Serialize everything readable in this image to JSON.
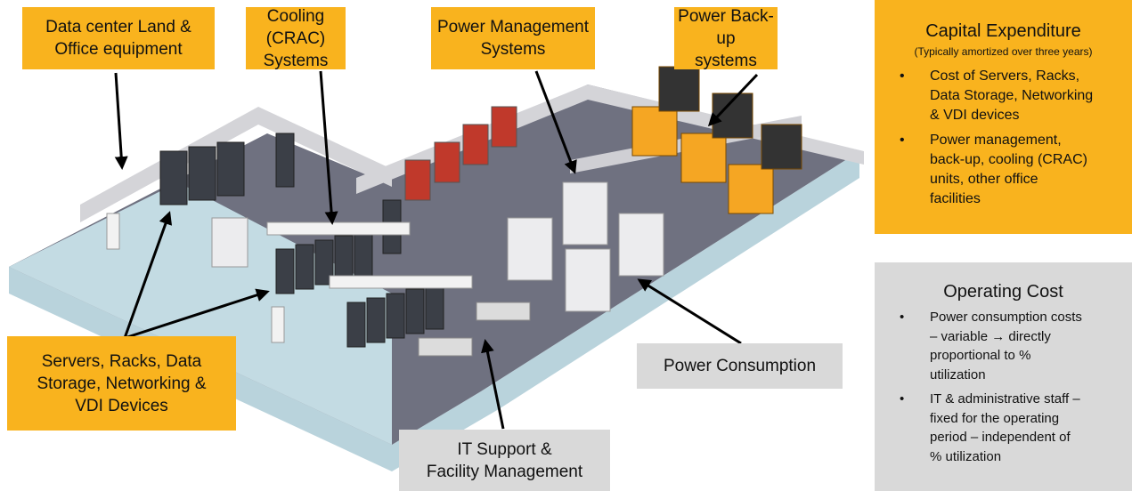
{
  "labels": [
    {
      "lines": [
        "Data center Land &",
        "Office equipment"
      ]
    },
    {
      "lines": [
        "Cooling (CRAC)",
        "Systems"
      ]
    },
    {
      "lines": [
        "Power Management",
        "Systems"
      ]
    },
    {
      "lines": [
        "Power Back-up",
        "systems"
      ]
    },
    {
      "lines": [
        "Servers, Racks, Data",
        "Storage, Networking &",
        "VDI Devices"
      ]
    },
    {
      "lines": [
        "IT Support &",
        "Facility Management"
      ]
    },
    {
      "lines": [
        "Power Consumption"
      ]
    }
  ],
  "capex": {
    "title": "Capital Expenditure",
    "subtitle": "(Typically amortized over three years)",
    "items": [
      [
        "Cost of Servers, Racks,",
        "Data Storage, Networking",
        "& VDI devices"
      ],
      [
        "Power management,",
        "back-up, cooling (CRAC)",
        "units, other office",
        "facilities"
      ]
    ]
  },
  "opex": {
    "title": "Operating Cost",
    "items": [
      [
        "Power consumption costs",
        "– variable → directly",
        "proportional to %",
        "utilization"
      ],
      [
        "IT & administrative staff –",
        "fixed for the operating",
        "period – independent of",
        "% utilization"
      ]
    ]
  }
}
